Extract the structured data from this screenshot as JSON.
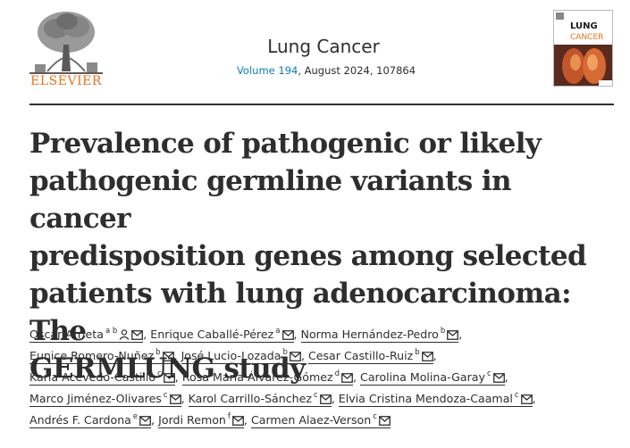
{
  "header": {
    "publisher": "ELSEVIER",
    "journal_title": "Lung Cancer",
    "volume_link": "Volume 194",
    "issue_info": ", August 2024, 107864",
    "cover_title_1": "LUNG",
    "cover_title_2": "CANCER"
  },
  "article": {
    "title_lines": [
      "Prevalence of pathogenic or likely",
      "pathogenic germline variants in cancer",
      "predisposition genes among selected",
      "patients with lung adenocarcinoma: The",
      "GERMLUNG study"
    ]
  },
  "authors": [
    {
      "name": "Oscar Arrieta",
      "sup": "a b",
      "person": true
    },
    {
      "name": "Enrique Caballé-Pérez",
      "sup": "a"
    },
    {
      "name": "Norma Hernández-Pedro",
      "sup": "b"
    },
    {
      "name": "Eunice Romero-Nuñez",
      "sup": "b"
    },
    {
      "name": "José Lucio-Lozada",
      "sup": "b"
    },
    {
      "name": "Cesar Castillo-Ruiz",
      "sup": "b"
    },
    {
      "name": "Karla Acevedo-Castillo",
      "sup": "c"
    },
    {
      "name": "Rosa María Álvarez-Gómez",
      "sup": "d"
    },
    {
      "name": "Carolina Molina-Garay",
      "sup": "c"
    },
    {
      "name": "Marco Jiménez-Olivares",
      "sup": "c"
    },
    {
      "name": "Karol Carrillo-Sánchez",
      "sup": "c"
    },
    {
      "name": "Elvia Cristina Mendoza-Caamal",
      "sup": "c"
    },
    {
      "name": "Andrés F. Cardona",
      "sup": "e"
    },
    {
      "name": "Jordi Remon",
      "sup": "f"
    },
    {
      "name": "Carmen Alaez-Verson",
      "sup": "c"
    }
  ],
  "author_rows": [
    [
      0,
      1,
      2
    ],
    [
      3,
      4,
      5
    ],
    [
      6,
      7,
      8
    ],
    [
      9,
      10,
      11
    ],
    [
      12,
      13,
      14
    ]
  ],
  "colors": {
    "link_blue": "#0c7dbb",
    "elsevier_orange": "#e9711c",
    "text": "#2e2e2e"
  },
  "icons": {
    "email": "email-icon",
    "person": "person-icon"
  }
}
